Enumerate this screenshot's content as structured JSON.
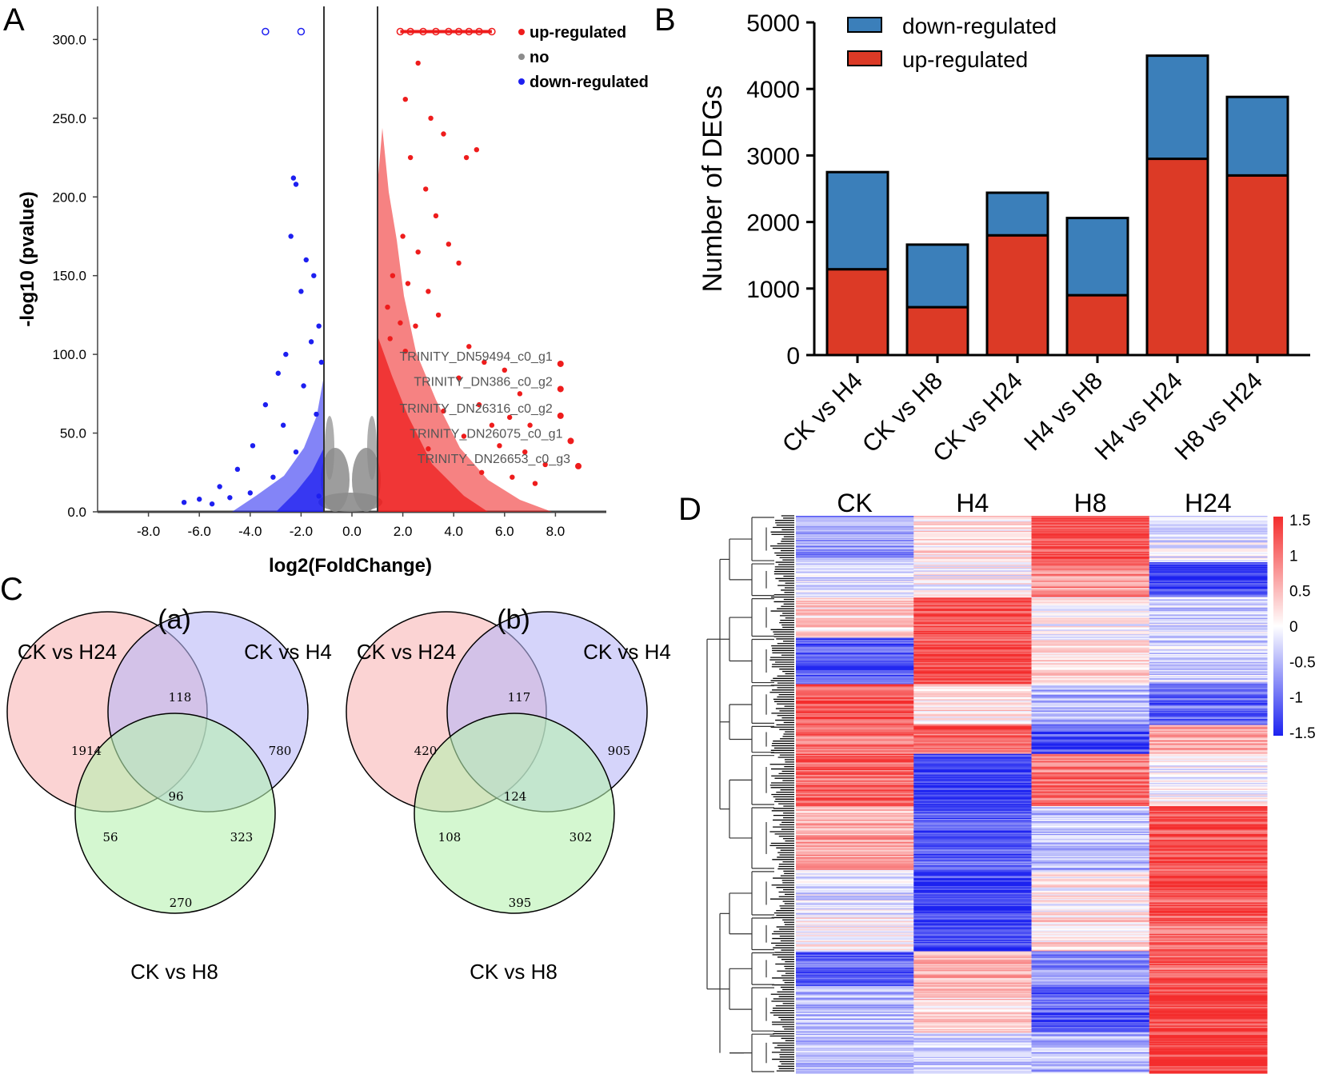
{
  "panels": {
    "a": "A",
    "b": "B",
    "c": "C",
    "d": "D"
  },
  "colors": {
    "up_dot": "#ee1c1c",
    "down_dot": "#1d1ff0",
    "no_dot": "#8c8c8c",
    "up_bar": "#dc3a26",
    "down_bar": "#3b7fba",
    "venn_h24": "#f9b6b6",
    "venn_h4": "#b9b8f7",
    "venn_h8": "#b7f2b0",
    "heat_high": "#f42d2d",
    "heat_low": "#1c22f0"
  },
  "chart_data": [
    {
      "id": "volcano",
      "type": "scatter",
      "title": "",
      "xlabel": "log2(FoldChange)",
      "ylabel": "-log10 (pvalue)",
      "xlim": [
        -10,
        10
      ],
      "ylim": [
        0,
        320
      ],
      "xticks": [
        "-8.0",
        "-6.0",
        "-4.0",
        "-2.0",
        "0.0",
        "2.0",
        "4.0",
        "6.0",
        "8.0"
      ],
      "yticks": [
        "0.0",
        "50.0",
        "100.0",
        "150.0",
        "200.0",
        "250.0",
        "300.0"
      ],
      "thresholds_x": [
        -1,
        1
      ],
      "legend": [
        "up-regulated",
        "no",
        "down-regulated"
      ],
      "annotations": [
        {
          "label": "TRINITY_DN59494_c0_g1",
          "x": 8.2,
          "y": 94
        },
        {
          "label": "TRINITY_DN386_c0_g2",
          "x": 8.2,
          "y": 78
        },
        {
          "label": "TRINITY_DN26316_c0_g2",
          "x": 8.2,
          "y": 61
        },
        {
          "label": "TRINITY_DN26075_c0_g1",
          "x": 8.6,
          "y": 45
        },
        {
          "label": "TRINITY_DN26653_c0_g3",
          "x": 8.9,
          "y": 29
        }
      ],
      "capped_up": [
        [
          1.9,
          305
        ],
        [
          2.3,
          305
        ],
        [
          2.8,
          305
        ],
        [
          3.3,
          305
        ],
        [
          3.8,
          305
        ],
        [
          4.2,
          305
        ],
        [
          4.6,
          305
        ],
        [
          5.0,
          305
        ],
        [
          5.5,
          305
        ]
      ],
      "capped_down": [
        [
          -3.4,
          305
        ],
        [
          -2.0,
          305
        ]
      ],
      "up_points": [
        [
          2.1,
          262
        ],
        [
          2.6,
          285
        ],
        [
          3.1,
          250
        ],
        [
          3.6,
          240
        ],
        [
          4.5,
          225
        ],
        [
          4.9,
          230
        ],
        [
          2.3,
          225
        ],
        [
          2.9,
          205
        ],
        [
          3.3,
          188
        ],
        [
          2.0,
          175
        ],
        [
          2.6,
          165
        ],
        [
          3.8,
          170
        ],
        [
          4.2,
          158
        ],
        [
          1.6,
          150
        ],
        [
          2.2,
          145
        ],
        [
          3.0,
          140
        ],
        [
          1.4,
          130
        ],
        [
          1.9,
          120
        ],
        [
          2.5,
          118
        ],
        [
          3.4,
          125
        ],
        [
          4.6,
          105
        ],
        [
          1.5,
          110
        ],
        [
          2.1,
          102
        ],
        [
          5.2,
          95
        ],
        [
          6.0,
          90
        ],
        [
          4.2,
          85
        ],
        [
          6.6,
          75
        ],
        [
          5.0,
          68
        ],
        [
          3.6,
          64
        ],
        [
          5.5,
          55
        ],
        [
          6.2,
          60
        ],
        [
          7.0,
          55
        ],
        [
          4.4,
          48
        ],
        [
          5.8,
          42
        ],
        [
          3.0,
          40
        ],
        [
          6.8,
          38
        ],
        [
          7.6,
          30
        ],
        [
          5.1,
          25
        ],
        [
          6.3,
          22
        ],
        [
          7.2,
          18
        ]
      ],
      "down_points": [
        [
          -2.3,
          212
        ],
        [
          -2.2,
          208
        ],
        [
          -2.4,
          175
        ],
        [
          -1.8,
          160
        ],
        [
          -1.5,
          150
        ],
        [
          -2.0,
          140
        ],
        [
          -1.3,
          118
        ],
        [
          -1.6,
          108
        ],
        [
          -2.6,
          100
        ],
        [
          -1.2,
          95
        ],
        [
          -2.9,
          88
        ],
        [
          -1.9,
          80
        ],
        [
          -3.4,
          68
        ],
        [
          -1.4,
          62
        ],
        [
          -2.7,
          55
        ],
        [
          -3.9,
          42
        ],
        [
          -2.2,
          38
        ],
        [
          -4.5,
          27
        ],
        [
          -3.1,
          22
        ],
        [
          -5.2,
          16
        ],
        [
          -4.0,
          12
        ],
        [
          -6.0,
          8
        ],
        [
          -5.5,
          5
        ],
        [
          -6.6,
          6
        ],
        [
          -4.8,
          9
        ],
        [
          -1.3,
          10
        ]
      ]
    },
    {
      "id": "degs",
      "type": "bar",
      "stacked": true,
      "title": "",
      "xlabel": "",
      "ylabel": "Number of DEGs",
      "ylim": [
        0,
        5000
      ],
      "yticks": [
        "0",
        "1000",
        "2000",
        "3000",
        "4000",
        "5000"
      ],
      "categories": [
        "CK vs H4",
        "CK vs H8",
        "CK vs H24",
        "H4 vs H8",
        "H4 vs H24",
        "H8 vs H24"
      ],
      "series": [
        {
          "name": "up-regulated",
          "values": [
            1290,
            720,
            1800,
            900,
            2950,
            2700
          ]
        },
        {
          "name": "down-regulated",
          "values": [
            1460,
            940,
            640,
            1160,
            1550,
            1180
          ]
        }
      ],
      "legend": [
        "down-regulated",
        "up-regulated"
      ]
    },
    {
      "id": "venn-a",
      "type": "venn",
      "title": "(a)",
      "sets": [
        "CK vs H24",
        "CK vs H4",
        "CK vs H8"
      ],
      "regions": {
        "h24_only": 1914,
        "h24_h4": 118,
        "h4_only": 780,
        "all": 96,
        "h24_h8": 56,
        "h4_h8": 323,
        "h8_only": 270
      }
    },
    {
      "id": "venn-b",
      "type": "venn",
      "title": "(b)",
      "sets": [
        "CK vs H24",
        "CK vs H4",
        "CK vs H8"
      ],
      "regions": {
        "h24_only": 420,
        "h24_h4": 117,
        "h4_only": 905,
        "all": 124,
        "h24_h8": 108,
        "h4_h8": 302,
        "h8_only": 395
      }
    },
    {
      "id": "heatmap",
      "type": "heatmap",
      "title": "",
      "columns": [
        "CK",
        "H4",
        "H8",
        "H24"
      ],
      "colorbar_ticks": [
        "1.5",
        "1",
        "0.5",
        "0",
        "-0.5",
        "-1",
        "-1.5"
      ],
      "clusters": [
        {
          "rows": 40,
          "values": [
            -0.7,
            0.2,
            1.3,
            -0.2
          ]
        },
        {
          "rows": 30,
          "values": [
            -0.3,
            0.0,
            0.8,
            -1.3
          ]
        },
        {
          "rows": 35,
          "values": [
            0.3,
            1.3,
            0.0,
            -0.3
          ]
        },
        {
          "rows": 40,
          "values": [
            -1.1,
            1.3,
            0.2,
            -0.3
          ]
        },
        {
          "rows": 35,
          "values": [
            1.2,
            0.2,
            -0.5,
            -1.0
          ]
        },
        {
          "rows": 25,
          "values": [
            1.0,
            1.1,
            -1.2,
            0.6
          ]
        },
        {
          "rows": 45,
          "values": [
            1.1,
            -1.3,
            1.0,
            0.0
          ]
        },
        {
          "rows": 55,
          "values": [
            0.6,
            -1.1,
            -0.4,
            1.2
          ]
        },
        {
          "rows": 40,
          "values": [
            -0.2,
            -1.3,
            0.1,
            1.2
          ]
        },
        {
          "rows": 30,
          "values": [
            0.1,
            -1.2,
            0.2,
            1.0
          ]
        },
        {
          "rows": 30,
          "values": [
            -1.1,
            0.5,
            -0.7,
            1.1
          ]
        },
        {
          "rows": 40,
          "values": [
            -0.5,
            0.3,
            -1.1,
            1.3
          ]
        },
        {
          "rows": 35,
          "values": [
            -0.4,
            -0.3,
            -0.5,
            1.4
          ]
        }
      ]
    }
  ]
}
